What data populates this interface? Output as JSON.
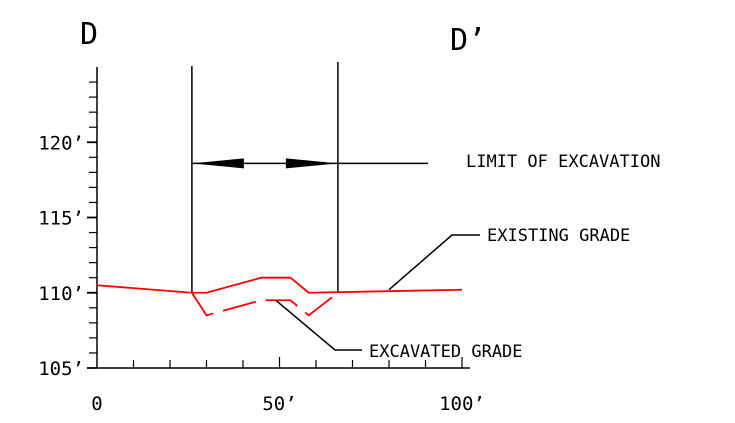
{
  "section": {
    "start_label": "D",
    "end_label": "D’"
  },
  "annotations": {
    "limit": "LIMIT OF EXCAVATION",
    "existing": "EXISTING GRADE",
    "excavated": "EXCAVATED GRADE"
  },
  "colors": {
    "lines": "#000000",
    "existing": "#ff0000",
    "excavated": "#ff0000",
    "background": "#ffffff"
  },
  "chart_data": {
    "type": "line",
    "x_ticks": [
      {
        "value": 0,
        "label": "0"
      },
      {
        "value": 50,
        "label": "50’"
      },
      {
        "value": 100,
        "label": "100’"
      }
    ],
    "y_ticks": [
      {
        "value": 105,
        "label": "105’"
      },
      {
        "value": 110,
        "label": "110’"
      },
      {
        "value": 115,
        "label": "115’"
      },
      {
        "value": 120,
        "label": "120’"
      }
    ],
    "xlim": [
      0,
      100
    ],
    "ylim": [
      105,
      125
    ],
    "limit_of_excavation": [
      26,
      66
    ],
    "series": [
      {
        "name": "EXISTING GRADE",
        "style": "solid",
        "x": [
          0,
          26,
          30,
          45,
          53,
          58,
          100
        ],
        "y": [
          110.5,
          110,
          110,
          111,
          111,
          110,
          110.2
        ]
      },
      {
        "name": "EXCAVATED GRADE",
        "style": "dashed",
        "x": [
          26,
          30,
          45,
          53,
          58,
          66
        ],
        "y": [
          110,
          108.5,
          109.5,
          109.5,
          108.5,
          110
        ]
      }
    ]
  }
}
